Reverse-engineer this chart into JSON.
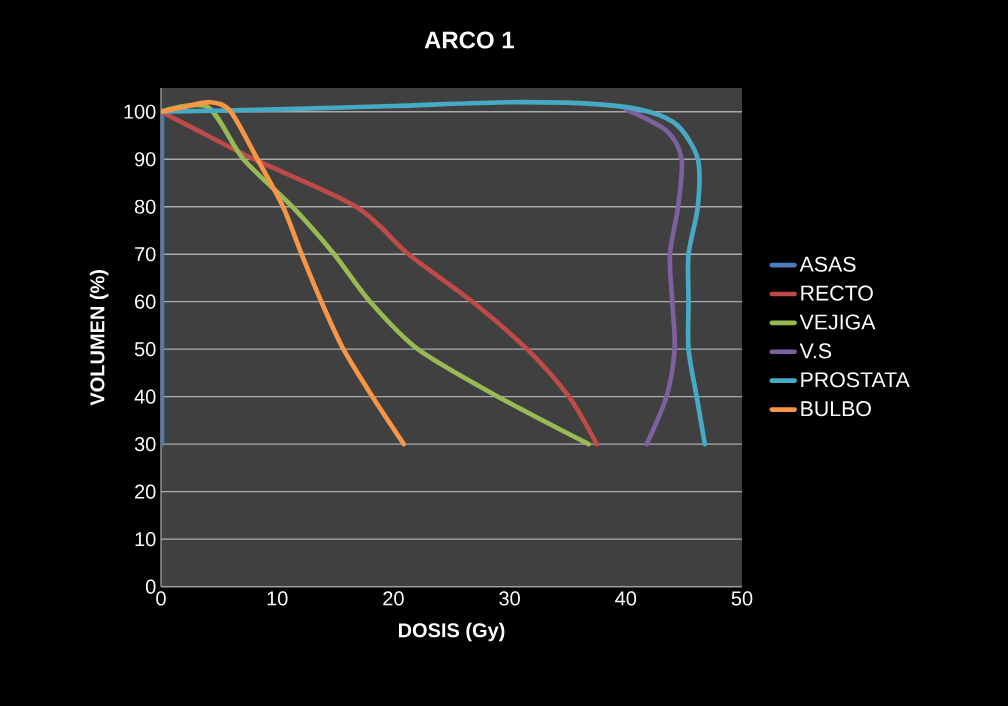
{
  "chart_data": {
    "type": "line",
    "title": "ARCO 1",
    "xlabel": "DOSIS (Gy)",
    "ylabel": "VOLUMEN (%)",
    "xlim": [
      0,
      50
    ],
    "ylim": [
      0,
      105
    ],
    "xticks": [
      0,
      10,
      20,
      30,
      40,
      50
    ],
    "yticks": [
      0,
      10,
      20,
      30,
      40,
      50,
      60,
      70,
      80,
      90,
      100
    ],
    "grid": "y",
    "legend": "right",
    "marker": "none",
    "line_style": "solid",
    "series": [
      {
        "name": "ASAS",
        "color": "#4a7ebb",
        "x": [
          0.1,
          0.1
        ],
        "values": [
          100,
          30
        ]
      },
      {
        "name": "RECTO",
        "color": "#be4b48",
        "x": [
          0,
          4,
          8,
          16.8,
          21.3,
          26.8,
          31.5,
          35.1,
          37.5
        ],
        "values": [
          100,
          95,
          90,
          80,
          70,
          60,
          50,
          40,
          30
        ]
      },
      {
        "name": "VEJIGA",
        "color": "#98b954",
        "x": [
          0,
          4,
          7.1,
          11.3,
          14.9,
          18,
          22.1,
          29,
          36.8
        ],
        "values": [
          100,
          101,
          90,
          80,
          70,
          60,
          50,
          40,
          30
        ]
      },
      {
        "name": "V.S",
        "color": "#7d60a0",
        "x": [
          40,
          43.5,
          44.8,
          44.5,
          43.8,
          44,
          44.2,
          43.5,
          41.8
        ],
        "values": [
          100.5,
          96,
          90,
          80,
          70,
          60,
          50,
          40,
          30
        ]
      },
      {
        "name": "PROSTATA",
        "color": "#46aac5",
        "x": [
          0,
          10,
          20,
          30,
          38,
          42,
          44.5,
          46.2,
          46.2,
          45.4,
          45.4,
          45.4,
          46.1,
          46.8
        ],
        "values": [
          100,
          100.5,
          101.2,
          102,
          101.5,
          100,
          97,
          90,
          80,
          70,
          60,
          50,
          40,
          30
        ]
      },
      {
        "name": "BULBO",
        "color": "#f79646",
        "x": [
          0,
          2,
          4.3,
          6,
          8.3,
          10.5,
          12.1,
          13.8,
          15.7,
          18.2,
          20.9
        ],
        "values": [
          100,
          101,
          102,
          100,
          90,
          80,
          70,
          60,
          50,
          40,
          30
        ]
      }
    ]
  }
}
